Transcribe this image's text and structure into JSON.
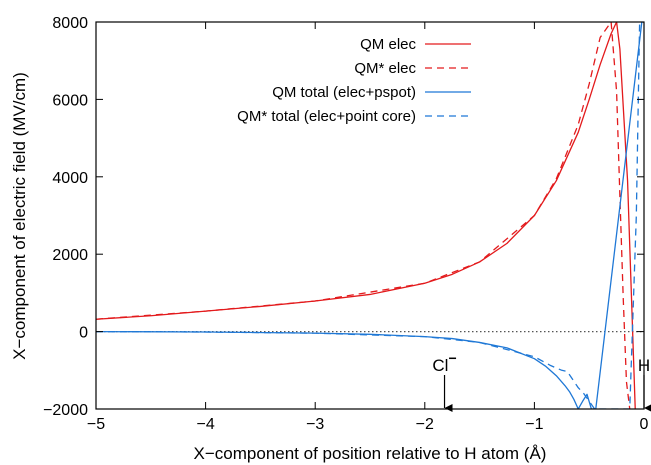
{
  "chart_data": {
    "type": "line",
    "xlabel": "X−component of position relative to H atom (Å)",
    "ylabel": "X−component of electric field (MV/cm)",
    "xlim": [
      -5,
      0
    ],
    "ylim": [
      -2000,
      8000
    ],
    "x_ticks": [
      -5,
      -4,
      -3,
      -2,
      -1,
      0
    ],
    "y_ticks": [
      -2000,
      0,
      2000,
      4000,
      6000,
      8000
    ],
    "x_tick_labels": [
      "−5",
      "−4",
      "−3",
      "−2",
      "−1",
      "0"
    ],
    "y_tick_labels": [
      "−2000",
      "0",
      "2000",
      "4000",
      "6000",
      "8000"
    ],
    "grid": false,
    "legend_position": "top-right",
    "zero_line": {
      "y": 0,
      "style": "dotted",
      "color": "#555555"
    },
    "annotations": [
      {
        "text": "Cl",
        "superscript": "−",
        "x": -1.82
      },
      {
        "text": "H",
        "x": 0.0
      }
    ],
    "series": [
      {
        "name": "QM elec",
        "color": "#e31a1c",
        "dash": "solid",
        "x": [
          -5.0,
          -4.5,
          -4.0,
          -3.5,
          -3.0,
          -2.5,
          -2.0,
          -1.75,
          -1.5,
          -1.25,
          -1.0,
          -0.8,
          -0.6,
          -0.5,
          -0.4,
          -0.3,
          -0.25,
          -0.22,
          -0.15,
          -0.08
        ],
        "y": [
          320,
          410,
          530,
          650,
          790,
          960,
          1250,
          1480,
          1800,
          2280,
          3000,
          3900,
          5150,
          6000,
          6900,
          7700,
          8000,
          7300,
          3900,
          -2000
        ]
      },
      {
        "name": "QM* elec",
        "color": "#e31a1c",
        "dash": "dashed",
        "x": [
          -5.0,
          -4.0,
          -3.0,
          -2.0,
          -1.5,
          -1.0,
          -0.8,
          -0.6,
          -0.5,
          -0.4,
          -0.3,
          -0.25,
          -0.22,
          -0.19,
          -0.16,
          -0.13
        ],
        "y": [
          320,
          530,
          790,
          1250,
          1800,
          3000,
          3950,
          5350,
          6400,
          7600,
          8000,
          6200,
          3500,
          900,
          -1300,
          -2000
        ]
      },
      {
        "name": "QM total (elec+pspot)",
        "color": "#1f78d6",
        "dash": "solid",
        "x": [
          -5.0,
          -4.0,
          -3.0,
          -2.5,
          -2.0,
          -1.75,
          -1.5,
          -1.25,
          -1.0,
          -0.9,
          -0.8,
          -0.72,
          -0.68,
          -0.64,
          -0.6,
          -0.56,
          -0.52,
          -0.48,
          -0.44,
          -0.02,
          0.0
        ],
        "y": [
          0,
          -10,
          -40,
          -70,
          -130,
          -180,
          -280,
          -420,
          -700,
          -890,
          -1140,
          -1400,
          -1550,
          -1750,
          -2000,
          -1800,
          -1620,
          -2000,
          -2000,
          8000,
          8000
        ]
      },
      {
        "name": "QM* total (elec+point core)",
        "color": "#1f78d6",
        "dash": "dashed",
        "x": [
          -5.0,
          -4.0,
          -3.0,
          -2.0,
          -1.5,
          -1.0,
          -0.85,
          -0.75,
          -0.7,
          -0.6,
          -0.55,
          -0.5,
          -0.45,
          -0.13,
          -0.07,
          -0.04
        ],
        "y": [
          0,
          -10,
          -40,
          -130,
          -280,
          -650,
          -880,
          -1000,
          -1030,
          -1450,
          -1600,
          -1800,
          -2000,
          -2000,
          3000,
          8000
        ]
      }
    ]
  }
}
